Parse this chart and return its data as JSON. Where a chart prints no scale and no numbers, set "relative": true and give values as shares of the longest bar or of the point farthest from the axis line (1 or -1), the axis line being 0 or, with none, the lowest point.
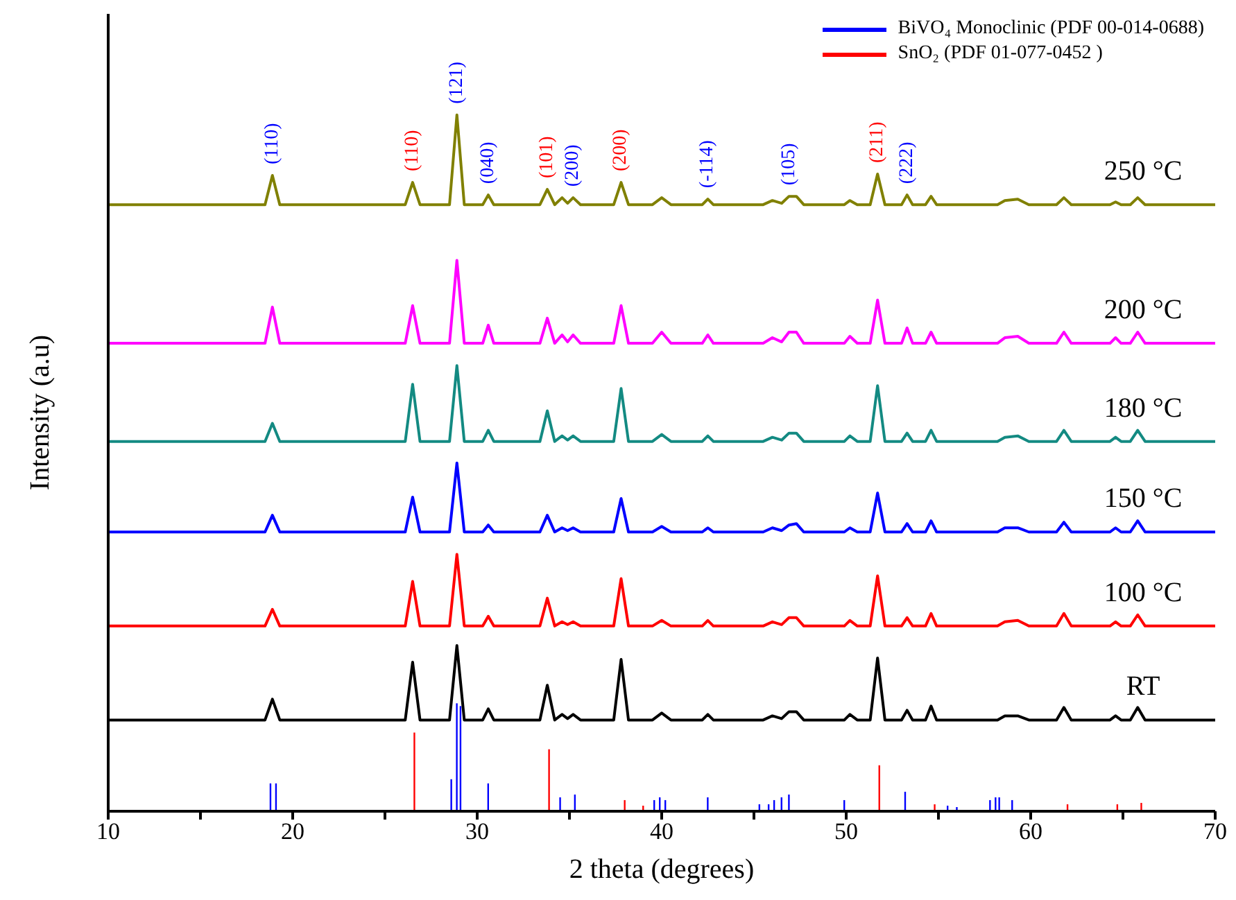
{
  "chart_data": {
    "type": "line",
    "relative": true,
    "xlabel": "2 theta (degrees)",
    "ylabel": "Intensity (a.u)",
    "legend": "top right",
    "xlim": [
      10,
      70
    ],
    "xticks": [
      10,
      {
        "value": 15,
        "label": null
      },
      20,
      {
        "value": 25,
        "label": null
      },
      30,
      {
        "value": 35,
        "label": null
      },
      40,
      {
        "value": 45,
        "label": null
      },
      50,
      {
        "value": 55,
        "label": null
      },
      60,
      {
        "value": 65,
        "label": null
      },
      70
    ],
    "x": [
      10,
      18.5,
      18.9,
      19.3,
      26.1,
      26.5,
      26.9,
      28.5,
      28.9,
      29.3,
      30.3,
      30.6,
      30.9,
      33.4,
      33.8,
      34.2,
      34.6,
      34.9,
      35.2,
      35.6,
      37.4,
      37.8,
      38.2,
      39.5,
      40.0,
      40.5,
      42.2,
      42.5,
      42.8,
      45.5,
      46.0,
      46.5,
      46.9,
      47.3,
      47.7,
      49.9,
      50.2,
      50.6,
      51.3,
      51.7,
      52.1,
      53.0,
      53.3,
      53.6,
      54.3,
      54.6,
      54.9,
      58.2,
      58.6,
      59.3,
      59.9,
      61.4,
      61.8,
      62.2,
      64.3,
      64.6,
      64.9,
      65.4,
      65.8,
      66.2,
      70
    ],
    "series": [
      {
        "name": "RT",
        "color": "#000000",
        "values": [
          0.131,
          0.131,
          0.161,
          0.131,
          0.131,
          0.214,
          0.131,
          0.131,
          0.238,
          0.131,
          0.131,
          0.147,
          0.131,
          0.131,
          0.181,
          0.131,
          0.139,
          0.133,
          0.139,
          0.131,
          0.131,
          0.218,
          0.131,
          0.131,
          0.141,
          0.131,
          0.131,
          0.139,
          0.131,
          0.131,
          0.137,
          0.133,
          0.143,
          0.143,
          0.131,
          0.131,
          0.139,
          0.131,
          0.131,
          0.22,
          0.131,
          0.131,
          0.145,
          0.131,
          0.131,
          0.151,
          0.131,
          0.131,
          0.137,
          0.137,
          0.131,
          0.131,
          0.149,
          0.131,
          0.131,
          0.137,
          0.131,
          0.131,
          0.149,
          0.131,
          0.131
        ]
      },
      {
        "name": "100 °C",
        "color": "#ff0000",
        "values": [
          0.266,
          0.266,
          0.29,
          0.266,
          0.266,
          0.33,
          0.266,
          0.266,
          0.369,
          0.266,
          0.266,
          0.28,
          0.266,
          0.266,
          0.306,
          0.266,
          0.272,
          0.268,
          0.272,
          0.266,
          0.266,
          0.334,
          0.266,
          0.266,
          0.274,
          0.266,
          0.266,
          0.274,
          0.266,
          0.266,
          0.272,
          0.268,
          0.278,
          0.278,
          0.266,
          0.266,
          0.274,
          0.266,
          0.266,
          0.338,
          0.266,
          0.266,
          0.278,
          0.266,
          0.266,
          0.284,
          0.266,
          0.266,
          0.272,
          0.274,
          0.266,
          0.266,
          0.284,
          0.266,
          0.266,
          0.272,
          0.266,
          0.266,
          0.282,
          0.266,
          0.266
        ]
      },
      {
        "name": "150 °C",
        "color": "#0000ff",
        "values": [
          0.401,
          0.401,
          0.425,
          0.401,
          0.401,
          0.451,
          0.401,
          0.401,
          0.5,
          0.401,
          0.401,
          0.411,
          0.401,
          0.401,
          0.425,
          0.401,
          0.407,
          0.403,
          0.407,
          0.401,
          0.401,
          0.449,
          0.401,
          0.401,
          0.409,
          0.401,
          0.401,
          0.407,
          0.401,
          0.401,
          0.407,
          0.403,
          0.411,
          0.413,
          0.401,
          0.401,
          0.407,
          0.401,
          0.401,
          0.457,
          0.401,
          0.401,
          0.413,
          0.401,
          0.401,
          0.417,
          0.401,
          0.401,
          0.407,
          0.407,
          0.401,
          0.401,
          0.415,
          0.401,
          0.401,
          0.407,
          0.401,
          0.401,
          0.417,
          0.401,
          0.401
        ]
      },
      {
        "name": "180 °C",
        "color": "#138a82",
        "values": [
          0.531,
          0.531,
          0.557,
          0.531,
          0.531,
          0.613,
          0.531,
          0.531,
          0.64,
          0.531,
          0.531,
          0.547,
          0.531,
          0.531,
          0.575,
          0.531,
          0.539,
          0.533,
          0.539,
          0.531,
          0.531,
          0.607,
          0.531,
          0.531,
          0.541,
          0.531,
          0.531,
          0.539,
          0.531,
          0.531,
          0.537,
          0.533,
          0.543,
          0.543,
          0.531,
          0.531,
          0.539,
          0.531,
          0.531,
          0.611,
          0.531,
          0.531,
          0.543,
          0.531,
          0.531,
          0.547,
          0.531,
          0.531,
          0.537,
          0.539,
          0.531,
          0.531,
          0.547,
          0.531,
          0.531,
          0.537,
          0.531,
          0.531,
          0.547,
          0.531,
          0.531
        ]
      },
      {
        "name": "200 °C",
        "color": "#ff00ff",
        "values": [
          0.672,
          0.672,
          0.724,
          0.672,
          0.672,
          0.726,
          0.672,
          0.672,
          0.791,
          0.672,
          0.672,
          0.698,
          0.672,
          0.672,
          0.708,
          0.672,
          0.684,
          0.674,
          0.684,
          0.672,
          0.672,
          0.726,
          0.672,
          0.672,
          0.688,
          0.672,
          0.672,
          0.684,
          0.672,
          0.672,
          0.68,
          0.674,
          0.688,
          0.688,
          0.672,
          0.672,
          0.682,
          0.672,
          0.672,
          0.734,
          0.672,
          0.672,
          0.694,
          0.672,
          0.672,
          0.688,
          0.672,
          0.672,
          0.68,
          0.682,
          0.672,
          0.672,
          0.688,
          0.672,
          0.672,
          0.68,
          0.672,
          0.672,
          0.688,
          0.672,
          0.672
        ]
      },
      {
        "name": "250 °C",
        "color": "#808000",
        "values": [
          0.871,
          0.871,
          0.913,
          0.871,
          0.871,
          0.903,
          0.871,
          0.871,
          1.0,
          0.871,
          0.871,
          0.885,
          0.871,
          0.871,
          0.893,
          0.871,
          0.881,
          0.873,
          0.881,
          0.871,
          0.871,
          0.903,
          0.871,
          0.871,
          0.881,
          0.871,
          0.871,
          0.879,
          0.871,
          0.871,
          0.877,
          0.873,
          0.883,
          0.883,
          0.871,
          0.871,
          0.877,
          0.871,
          0.871,
          0.915,
          0.871,
          0.871,
          0.885,
          0.871,
          0.871,
          0.883,
          0.871,
          0.871,
          0.877,
          0.879,
          0.871,
          0.871,
          0.881,
          0.871,
          0.871,
          0.875,
          0.871,
          0.871,
          0.881,
          0.871,
          0.871
        ]
      },
      {
        "name": "BiVO₄ Monoclinic (PDF 00-014-0688)",
        "type": "bar",
        "color": "#0000ff",
        "x": [
          18.8,
          19.1,
          28.6,
          28.9,
          29.1,
          30.6,
          34.5,
          35.3,
          39.6,
          39.9,
          40.2,
          42.5,
          45.3,
          45.8,
          46.1,
          46.5,
          46.9,
          49.9,
          53.2,
          55.5,
          56.0,
          57.8,
          58.1,
          58.3,
          59.0
        ],
        "values": [
          0.04,
          0.04,
          0.046,
          0.155,
          0.151,
          0.04,
          0.02,
          0.024,
          0.016,
          0.02,
          0.016,
          0.02,
          0.01,
          0.01,
          0.016,
          0.02,
          0.024,
          0.016,
          0.028,
          0.008,
          0.006,
          0.016,
          0.02,
          0.02,
          0.016
        ]
      },
      {
        "name": "SnO₂ (PDF 01-077-0452 )",
        "type": "bar",
        "color": "#ff0000",
        "x": [
          26.6,
          33.9,
          38.0,
          39.0,
          51.8,
          54.8,
          62.0,
          64.7,
          66.0
        ],
        "values": [
          0.113,
          0.089,
          0.016,
          0.008,
          0.066,
          0.01,
          0.01,
          0.01,
          0.012
        ]
      }
    ],
    "annotations": [
      {
        "text": "(110)",
        "x": 18.9,
        "y": 0.913
      },
      {
        "text": "(110)",
        "x": 26.5,
        "y": 0.903
      },
      {
        "text": "(121)",
        "x": 28.9,
        "y": 1.0
      },
      {
        "text": "(040)",
        "x": 30.6,
        "y": 0.885
      },
      {
        "text": "(101)",
        "x": 33.8,
        "y": 0.893
      },
      {
        "text": "(200)",
        "x": 35.2,
        "y": 0.881
      },
      {
        "text": "(200)",
        "x": 37.8,
        "y": 0.903
      },
      {
        "text": "(-114)",
        "x": 42.5,
        "y": 0.879
      },
      {
        "text": "(105)",
        "x": 46.9,
        "y": 0.883
      },
      {
        "text": "(211)",
        "x": 51.7,
        "y": 0.915
      },
      {
        "text": "(222)",
        "x": 53.3,
        "y": 0.885
      }
    ]
  }
}
